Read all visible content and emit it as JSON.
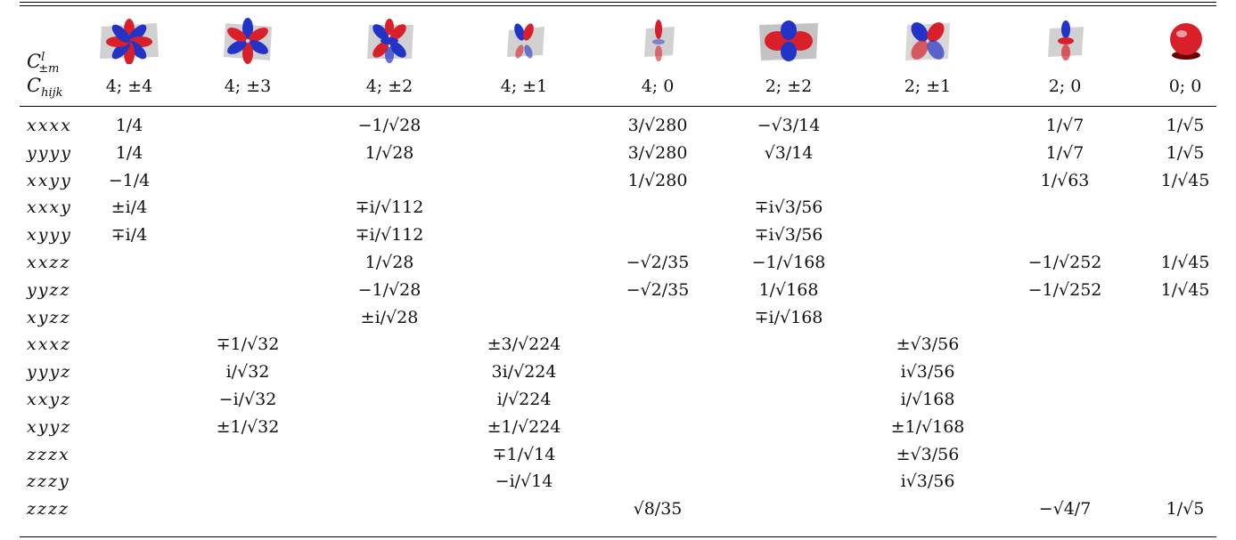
{
  "header": {
    "row1_label": {
      "base": "C",
      "sup": "l",
      "sub": "±m"
    },
    "row2_label": {
      "base": "C",
      "sub": "hijk"
    },
    "columns": [
      "4; ±4",
      "4; ±3",
      "4; ±2",
      "4; ±1",
      "4; 0",
      "2; ±2",
      "2; ±1",
      "2; 0",
      "0; 0"
    ],
    "orbital_icons": [
      "orbital-4-pm4-icon",
      "orbital-4-pm3-icon",
      "orbital-4-pm2-icon",
      "orbital-4-pm1-icon",
      "orbital-4-0-icon",
      "orbital-2-pm2-icon",
      "orbital-2-pm1-icon",
      "orbital-2-0-icon",
      "orbital-0-0-icon"
    ],
    "colors": {
      "positive": "#d9202a",
      "negative": "#2233c8",
      "plane": "#bdbdbd"
    }
  },
  "rows": [
    {
      "label": "xxxx",
      "cells": [
        "1/4",
        "",
        "−1/√28",
        "",
        "3/√280",
        "−√3/14",
        "",
        "1/√7",
        "1/√5"
      ]
    },
    {
      "label": "yyyy",
      "cells": [
        "1/4",
        "",
        "1/√28",
        "",
        "3/√280",
        "√3/14",
        "",
        "1/√7",
        "1/√5"
      ]
    },
    {
      "label": "xxyy",
      "cells": [
        "−1/4",
        "",
        "",
        "",
        "1/√280",
        "",
        "",
        "1/√63",
        "1/√45"
      ]
    },
    {
      "label": "xxxy",
      "cells": [
        "±i/4",
        "",
        "∓i/√112",
        "",
        "",
        "∓i√3/56",
        "",
        "",
        ""
      ]
    },
    {
      "label": "xyyy",
      "cells": [
        "∓i/4",
        "",
        "∓i/√112",
        "",
        "",
        "∓i√3/56",
        "",
        "",
        ""
      ]
    },
    {
      "label": "xxzz",
      "cells": [
        "",
        "",
        "1/√28",
        "",
        "−√2/35",
        "−1/√168",
        "",
        "−1/√252",
        "1/√45"
      ]
    },
    {
      "label": "yyzz",
      "cells": [
        "",
        "",
        "−1/√28",
        "",
        "−√2/35",
        "1/√168",
        "",
        "−1/√252",
        "1/√45"
      ]
    },
    {
      "label": "xyzz",
      "cells": [
        "",
        "",
        "±i/√28",
        "",
        "",
        "∓i/√168",
        "",
        "",
        ""
      ]
    },
    {
      "label": "xxxz",
      "cells": [
        "",
        "∓1/√32",
        "",
        "±3/√224",
        "",
        "",
        "±√3/56",
        "",
        ""
      ]
    },
    {
      "label": "yyyz",
      "cells": [
        "",
        "i/√32",
        "",
        "3i/√224",
        "",
        "",
        "i√3/56",
        "",
        ""
      ]
    },
    {
      "label": "xxyz",
      "cells": [
        "",
        "−i/√32",
        "",
        "i/√224",
        "",
        "",
        "i/√168",
        "",
        ""
      ]
    },
    {
      "label": "xyyz",
      "cells": [
        "",
        "±1/√32",
        "",
        "±1/√224",
        "",
        "",
        "±1/√168",
        "",
        ""
      ]
    },
    {
      "label": "zzzx",
      "cells": [
        "",
        "",
        "",
        "∓1/√14",
        "",
        "",
        "±√3/56",
        "",
        ""
      ]
    },
    {
      "label": "zzzy",
      "cells": [
        "",
        "",
        "",
        "−i/√14",
        "",
        "",
        "i√3/56",
        "",
        ""
      ]
    },
    {
      "label": "zzzz",
      "cells": [
        "",
        "",
        "",
        "",
        "√8/35",
        "",
        "",
        "−√4/7",
        "1/√5"
      ]
    }
  ]
}
